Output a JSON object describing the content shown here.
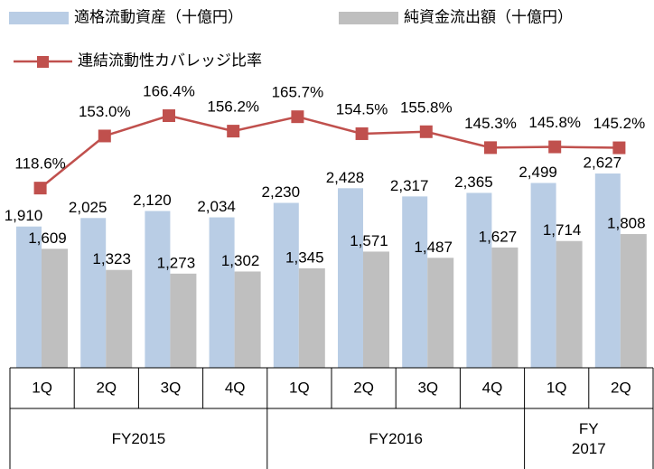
{
  "chart_data": {
    "type": "bar-line",
    "categories": [
      "1Q",
      "2Q",
      "3Q",
      "4Q",
      "1Q",
      "2Q",
      "3Q",
      "4Q",
      "1Q",
      "2Q"
    ],
    "groups": [
      {
        "label": "FY2015",
        "span": 4
      },
      {
        "label": "FY2016",
        "span": 4
      },
      {
        "label": "FY\n2017",
        "span": 2
      }
    ],
    "series": [
      {
        "name": "適格流動資産（十億円）",
        "color": "#b9cde5",
        "kind": "bar",
        "values": [
          1910,
          2025,
          2120,
          2034,
          2230,
          2428,
          2317,
          2365,
          2499,
          2627
        ],
        "value_labels": [
          "1,910",
          "2,025",
          "2,120",
          "2,034",
          "2,230",
          "2,428",
          "2,317",
          "2,365",
          "2,499",
          "2,627"
        ]
      },
      {
        "name": "純資金流出額（十億円）",
        "color": "#bfbfbf",
        "kind": "bar",
        "values": [
          1609,
          1323,
          1273,
          1302,
          1345,
          1571,
          1487,
          1627,
          1714,
          1808
        ],
        "value_labels": [
          "1,609",
          "1,323",
          "1,273",
          "1,302",
          "1,345",
          "1,571",
          "1,487",
          "1,627",
          "1,714",
          "1,808"
        ]
      },
      {
        "name": "連結流動性カバレッジ比率",
        "color": "#c0504d",
        "kind": "line",
        "values": [
          118.6,
          153.0,
          166.4,
          156.2,
          165.7,
          154.5,
          155.8,
          145.3,
          145.8,
          145.2
        ],
        "value_labels": [
          "118.6%",
          "153.0%",
          "166.4%",
          "156.2%",
          "165.7%",
          "154.5%",
          "155.8%",
          "145.3%",
          "145.8%",
          "145.2%"
        ]
      }
    ]
  }
}
